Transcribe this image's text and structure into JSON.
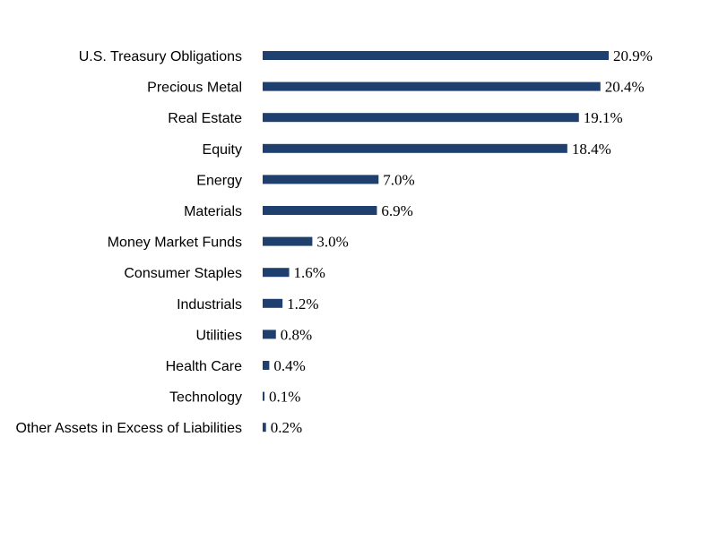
{
  "chart_data": {
    "type": "bar",
    "orientation": "horizontal",
    "categories": [
      "U.S. Treasury Obligations",
      "Precious Metal",
      "Real Estate",
      "Equity",
      "Energy",
      "Materials",
      "Money Market Funds",
      "Consumer Staples",
      "Industrials",
      "Utilities",
      "Health Care",
      "Technology",
      "Other Assets in Excess of Liabilities"
    ],
    "values": [
      20.9,
      20.4,
      19.1,
      18.4,
      7.0,
      6.9,
      3.0,
      1.6,
      1.2,
      0.8,
      0.4,
      0.1,
      0.2
    ],
    "value_labels": [
      "20.9%",
      "20.4%",
      "19.1%",
      "18.4%",
      "7.0%",
      "6.9%",
      "3.0%",
      "1.6%",
      "1.2%",
      "0.8%",
      "0.4%",
      "0.1%",
      "0.2%"
    ],
    "bar_color": "#1f3f6e",
    "title": "",
    "xlabel": "",
    "ylabel": "",
    "xlim": [
      0,
      20.9
    ],
    "grid": false,
    "legend": "none"
  }
}
